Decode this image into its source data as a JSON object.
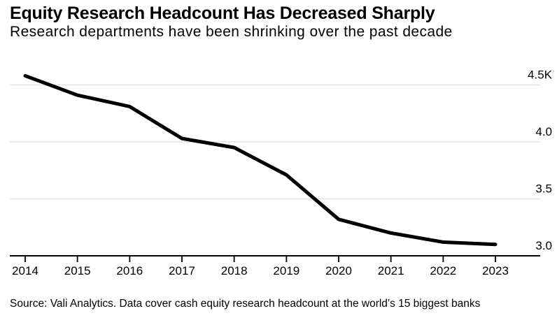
{
  "header": {
    "title": "Equity Research Headcount Has Decreased Sharply",
    "subtitle": "Research departments have been shrinking over the past decade"
  },
  "chart_data": {
    "type": "line",
    "title": "Equity Research Headcount Has Decreased Sharply",
    "subtitle": "Research departments have been shrinking over the past decade",
    "categories": [
      "2014",
      "2015",
      "2016",
      "2017",
      "2018",
      "2019",
      "2020",
      "2021",
      "2022",
      "2023"
    ],
    "series": [
      {
        "name": "Equity research headcount",
        "values": [
          4580,
          4410,
          4310,
          4030,
          3950,
          3710,
          3320,
          3200,
          3120,
          3100
        ]
      }
    ],
    "xlabel": "",
    "ylabel": "",
    "ylim": [
      3000,
      4600
    ],
    "yticks": [
      3000,
      3500,
      4000,
      4500
    ],
    "ytick_labels": [
      "3.0",
      "3.5",
      "4.0",
      "4.5K"
    ],
    "grid": "horizontal gridlines at yticks, labels on right side above gridlines",
    "legend_position": "none",
    "line_color": "#000000",
    "grid_color": "#e3e3e3",
    "axis_color": "#000000",
    "text_color": "#000000"
  },
  "footer": {
    "source": "Source: Vali Analytics. Data cover cash equity research headcount at the world’s 15 biggest banks"
  }
}
